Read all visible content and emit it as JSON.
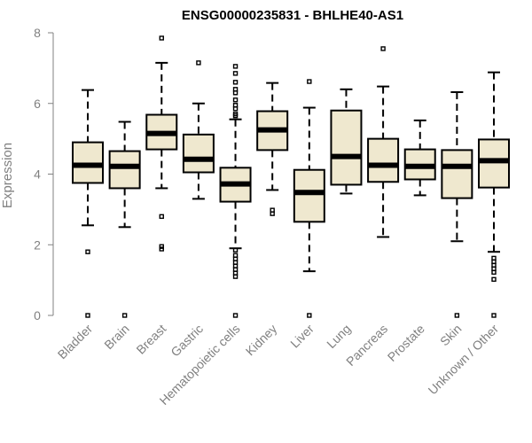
{
  "chart_data": {
    "type": "box",
    "title": "ENSG00000235831 - BHLHE40-AS1",
    "xlabel": "",
    "ylabel": "Expression",
    "ylim": [
      0,
      8
    ],
    "yticks": [
      0,
      2,
      4,
      6,
      8
    ],
    "grid": false,
    "colors": {
      "box_fill": "#efe8cf",
      "stroke": "#000000",
      "axis": "#808080"
    },
    "categories": [
      "Bladder",
      "Brain",
      "Breast",
      "Gastric",
      "Hematopoietic cells",
      "Kidney",
      "Liver",
      "Lung",
      "Pancreas",
      "Prostate",
      "Skin",
      "Unknown / Other"
    ],
    "boxes": [
      {
        "whisker_low": 2.55,
        "q1": 3.75,
        "median": 4.25,
        "q3": 4.9,
        "whisker_high": 6.38,
        "outliers": [
          1.8,
          0.0
        ]
      },
      {
        "whisker_low": 2.5,
        "q1": 3.6,
        "median": 4.22,
        "q3": 4.65,
        "whisker_high": 5.48,
        "outliers": [
          0.0
        ]
      },
      {
        "whisker_low": 3.6,
        "q1": 4.7,
        "median": 5.15,
        "q3": 5.68,
        "whisker_high": 7.15,
        "outliers": [
          7.85,
          2.8,
          1.95,
          1.88
        ]
      },
      {
        "whisker_low": 3.3,
        "q1": 4.05,
        "median": 4.42,
        "q3": 5.12,
        "whisker_high": 6.0,
        "outliers": [
          7.15
        ]
      },
      {
        "whisker_low": 1.9,
        "q1": 3.22,
        "median": 3.72,
        "q3": 4.18,
        "whisker_high": 5.55,
        "outliers": [
          7.05,
          6.85,
          6.6,
          6.4,
          6.3,
          6.1,
          5.95,
          5.85,
          5.7,
          5.65,
          1.85,
          1.7,
          1.6,
          1.5,
          1.4,
          1.3,
          1.2,
          1.1,
          0.0
        ]
      },
      {
        "whisker_low": 3.55,
        "q1": 4.68,
        "median": 5.25,
        "q3": 5.78,
        "whisker_high": 6.58,
        "outliers": [
          2.98,
          2.88
        ]
      },
      {
        "whisker_low": 1.25,
        "q1": 2.65,
        "median": 3.48,
        "q3": 4.12,
        "whisker_high": 5.88,
        "outliers": [
          6.62,
          0.0
        ]
      },
      {
        "whisker_low": 3.45,
        "q1": 3.7,
        "median": 4.5,
        "q3": 5.8,
        "whisker_high": 6.4,
        "outliers": []
      },
      {
        "whisker_low": 2.22,
        "q1": 3.78,
        "median": 4.25,
        "q3": 5.0,
        "whisker_high": 6.48,
        "outliers": [
          7.55
        ]
      },
      {
        "whisker_low": 3.4,
        "q1": 3.85,
        "median": 4.22,
        "q3": 4.7,
        "whisker_high": 5.52,
        "outliers": []
      },
      {
        "whisker_low": 2.1,
        "q1": 3.32,
        "median": 4.22,
        "q3": 4.68,
        "whisker_high": 6.32,
        "outliers": [
          0.0
        ]
      },
      {
        "whisker_low": 1.8,
        "q1": 3.62,
        "median": 4.38,
        "q3": 4.98,
        "whisker_high": 6.88,
        "outliers": [
          1.62,
          1.52,
          1.42,
          1.32,
          1.22,
          1.02,
          0.0
        ]
      }
    ]
  }
}
